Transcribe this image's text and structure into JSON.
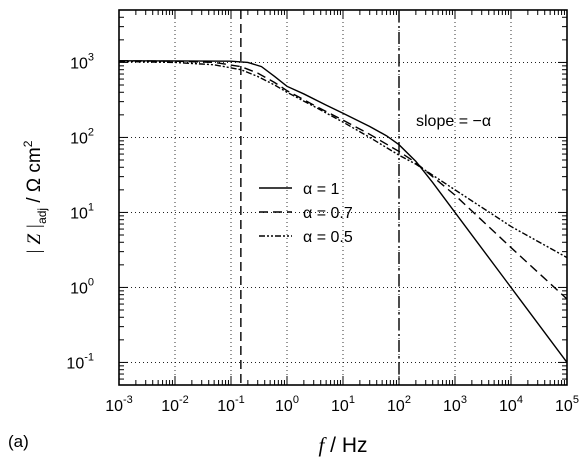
{
  "panel_label": "(a)",
  "chart_data": {
    "type": "line",
    "xlabel": {
      "italic": "f",
      "rest": " / Hz"
    },
    "ylabel": {
      "z": "| Z |",
      "sub": "adj",
      "unit": " / Ω cm",
      "sup": "2"
    },
    "x_scale": "log",
    "y_scale": "log",
    "xlim": [
      0.001,
      100000
    ],
    "ylim": [
      0.05,
      5000
    ],
    "x_ticks": [
      {
        "value": 0.001,
        "base": "10",
        "exp": "-3"
      },
      {
        "value": 0.01,
        "base": "10",
        "exp": "-2"
      },
      {
        "value": 0.1,
        "base": "10",
        "exp": "-1"
      },
      {
        "value": 1,
        "base": "10",
        "exp": "0"
      },
      {
        "value": 10,
        "base": "10",
        "exp": "1"
      },
      {
        "value": 100,
        "base": "10",
        "exp": "2"
      },
      {
        "value": 1000,
        "base": "10",
        "exp": "3"
      },
      {
        "value": 10000,
        "base": "10",
        "exp": "4"
      },
      {
        "value": 100000,
        "base": "10",
        "exp": "5"
      }
    ],
    "y_ticks": [
      {
        "value": 0.1,
        "base": "10",
        "exp": "-1"
      },
      {
        "value": 1,
        "base": "10",
        "exp": "0"
      },
      {
        "value": 10,
        "base": "10",
        "exp": "1"
      },
      {
        "value": 100,
        "base": "10",
        "exp": "2"
      },
      {
        "value": 1000,
        "base": "10",
        "exp": "3"
      }
    ],
    "grid": "dotted",
    "vertical_lines": [
      {
        "x": 0.15,
        "style": "dashed"
      },
      {
        "x": 100,
        "style": "dash-dot"
      }
    ],
    "annotation": {
      "text": "slope = −α",
      "x": 1000,
      "y": 150
    },
    "legend": {
      "placement": "center"
    },
    "series": [
      {
        "name": "α = 1",
        "style": "solid",
        "points": [
          [
            0.001,
            1050
          ],
          [
            0.01,
            1048
          ],
          [
            0.1,
            1040
          ],
          [
            0.2,
            1000
          ],
          [
            0.35,
            880
          ],
          [
            0.6,
            650
          ],
          [
            1,
            480
          ],
          [
            2,
            380
          ],
          [
            5,
            270
          ],
          [
            10,
            210
          ],
          [
            30,
            140
          ],
          [
            60,
            105
          ],
          [
            100,
            80
          ],
          [
            200,
            48
          ],
          [
            400,
            25
          ],
          [
            1000,
            10
          ],
          [
            10000,
            1
          ],
          [
            100000,
            0.1
          ]
        ]
      },
      {
        "name": "α = 0.7",
        "style": "dashed",
        "points": [
          [
            0.001,
            1050
          ],
          [
            0.01,
            1040
          ],
          [
            0.05,
            1000
          ],
          [
            0.15,
            880
          ],
          [
            0.3,
            720
          ],
          [
            0.6,
            540
          ],
          [
            1,
            420
          ],
          [
            3,
            270
          ],
          [
            10,
            170
          ],
          [
            30,
            110
          ],
          [
            100,
            65
          ],
          [
            200,
            46
          ],
          [
            1000,
            17
          ],
          [
            10000,
            3.4
          ],
          [
            100000,
            0.7
          ]
        ]
      },
      {
        "name": "α = 0.5",
        "style": "dashdotdot",
        "points": [
          [
            0.001,
            1030
          ],
          [
            0.01,
            1000
          ],
          [
            0.05,
            930
          ],
          [
            0.15,
            800
          ],
          [
            0.3,
            650
          ],
          [
            0.6,
            500
          ],
          [
            1,
            400
          ],
          [
            3,
            260
          ],
          [
            10,
            160
          ],
          [
            30,
            100
          ],
          [
            100,
            58
          ],
          [
            200,
            44
          ],
          [
            1000,
            20
          ],
          [
            10000,
            6.5
          ],
          [
            100000,
            2.5
          ]
        ]
      }
    ]
  }
}
